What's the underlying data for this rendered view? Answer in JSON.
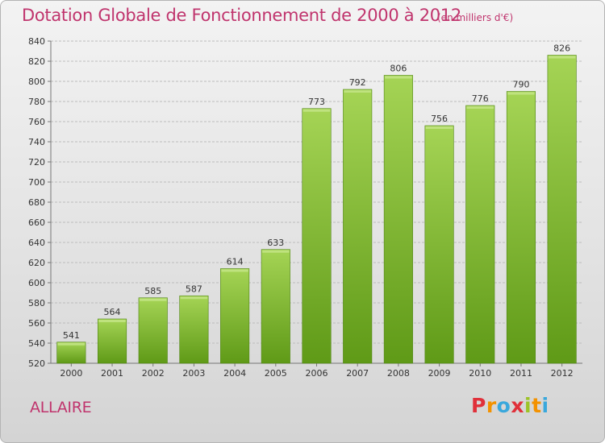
{
  "title": "Dotation Globale de Fonctionnement de 2000 à 2012",
  "subtitle": "(en milliers d'€)",
  "commune": "ALLAIRE",
  "logo": {
    "text": "Proxiti"
  },
  "colors": {
    "title": "#c0346d",
    "bar_top": "#a5d455",
    "bar_bottom": "#5f9a17",
    "grid": "#bcbcbc"
  },
  "chart_data": {
    "type": "bar",
    "title": "Dotation Globale de Fonctionnement de 2000 à 2012",
    "subtitle": "(en milliers d'€)",
    "categories": [
      "2000",
      "2001",
      "2002",
      "2003",
      "2004",
      "2005",
      "2006",
      "2007",
      "2008",
      "2009",
      "2010",
      "2011",
      "2012"
    ],
    "values": [
      541,
      564,
      585,
      587,
      614,
      633,
      773,
      792,
      806,
      756,
      776,
      790,
      826
    ],
    "ylim": [
      520,
      840
    ],
    "yticks": [
      520,
      540,
      560,
      580,
      600,
      620,
      640,
      660,
      680,
      700,
      720,
      740,
      760,
      780,
      800,
      820,
      840
    ],
    "grid": true,
    "data_labels": true
  }
}
